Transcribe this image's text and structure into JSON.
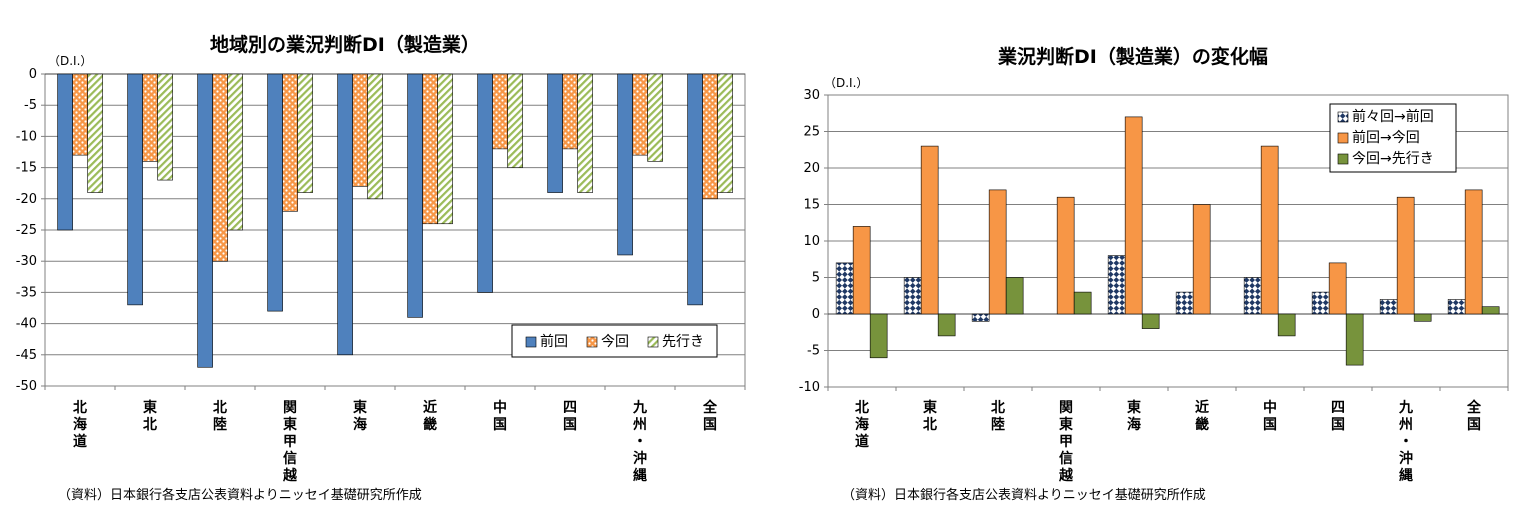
{
  "charts": [
    {
      "title": "地域別の業況判断DI（製造業）",
      "unit": "（D.I.）",
      "source": "（資料）日本銀行各支店公表資料よりニッセイ基礎研究所作成"
    },
    {
      "title": "業況判断DI（製造業）の変化幅",
      "unit": "（D.I.）",
      "source": "（資料）日本銀行各支店公表資料よりニッセイ基礎研究所作成"
    }
  ],
  "chart_data": [
    {
      "type": "bar",
      "title": "地域別の業況判断DI（製造業）",
      "ylabel": "（D.I.）",
      "ylim": [
        -50,
        0
      ],
      "yticks": [
        0,
        -5,
        -10,
        -15,
        -20,
        -25,
        -30,
        -35,
        -40,
        -45,
        -50
      ],
      "grid": true,
      "legend_position": "bottom-right",
      "categories": [
        "北海道",
        "東北",
        "北陸",
        "関東甲信越",
        "東海",
        "近畿",
        "中国",
        "四国",
        "九州・沖縄",
        "全国"
      ],
      "series": [
        {
          "name": "前回",
          "values": [
            -25,
            -37,
            -47,
            -38,
            -45,
            -39,
            -35,
            -19,
            -29,
            -37
          ],
          "color": "#4f81bd",
          "pattern": "solid"
        },
        {
          "name": "今回",
          "values": [
            -13,
            -14,
            -30,
            -22,
            -18,
            -24,
            -12,
            -12,
            -13,
            -20
          ],
          "color": "#f79646",
          "pattern": "dots"
        },
        {
          "name": "先行き",
          "values": [
            -19,
            -17,
            -25,
            -19,
            -20,
            -24,
            -15,
            -19,
            -14,
            -19
          ],
          "color": "#9bbb59",
          "pattern": "diagonal"
        }
      ]
    },
    {
      "type": "bar",
      "title": "業況判断DI（製造業）の変化幅",
      "ylabel": "（D.I.）",
      "ylim": [
        -10,
        30
      ],
      "yticks": [
        30,
        25,
        20,
        15,
        10,
        5,
        0,
        -5,
        -10
      ],
      "grid": true,
      "legend_position": "top-right",
      "categories": [
        "北海道",
        "東北",
        "北陸",
        "関東甲信越",
        "東海",
        "近畿",
        "中国",
        "四国",
        "九州・沖縄",
        "全国"
      ],
      "series": [
        {
          "name": "前々回→前回",
          "values": [
            7,
            5,
            -1,
            0,
            8,
            3,
            5,
            3,
            2,
            2
          ],
          "color": "#1f3864",
          "pattern": "checker"
        },
        {
          "name": "前回→今回",
          "values": [
            12,
            23,
            17,
            16,
            27,
            15,
            23,
            7,
            16,
            17
          ],
          "color": "#f79646",
          "pattern": "solid"
        },
        {
          "name": "今回→先行き",
          "values": [
            -6,
            -3,
            5,
            3,
            -2,
            0,
            -3,
            -7,
            -1,
            1
          ],
          "color": "#77933c",
          "pattern": "solid"
        }
      ]
    }
  ]
}
